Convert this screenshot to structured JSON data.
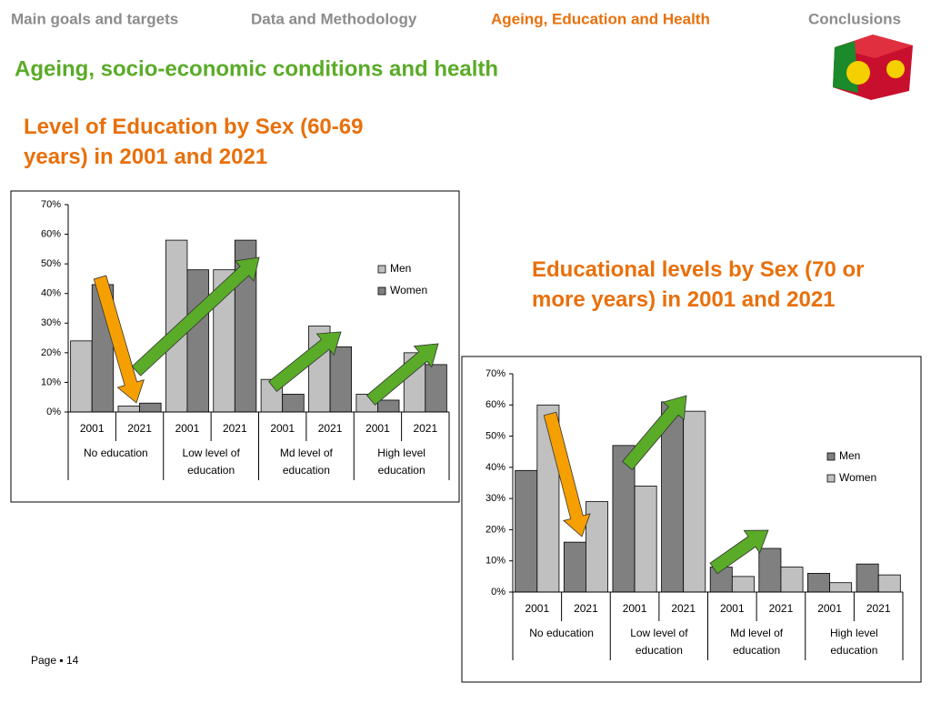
{
  "nav": [
    "Main goals and targets",
    "Data and Methodology",
    "Ageing, Education and Health",
    "Conclusions"
  ],
  "title": "Ageing, socio-economic conditions and health",
  "footer": "Page ▪ 14",
  "chart_data": [
    {
      "type": "bar",
      "heading": "Level of Education by Sex (60-69 years) in 2001 and 2021",
      "categories": [
        "2001",
        "2021",
        "2001",
        "2021",
        "2001",
        "2021",
        "2001",
        "2021"
      ],
      "groups": [
        "No education",
        "Low  level of education",
        "Md level of education",
        "High level education"
      ],
      "series": [
        {
          "name": "Men",
          "color": "#c0c0c0",
          "values": [
            24,
            2,
            58,
            48,
            11,
            29,
            6,
            20
          ]
        },
        {
          "name": "Women",
          "color": "#808080",
          "values": [
            43,
            3,
            48,
            58,
            6,
            22,
            4,
            16
          ]
        }
      ],
      "ylim": [
        0,
        70
      ],
      "yticks": [
        {
          "value": 0,
          "label": "0%"
        },
        {
          "value": 10,
          "label": "10%"
        },
        {
          "value": 20,
          "label": "20%"
        },
        {
          "value": 30,
          "label": "30%"
        },
        {
          "value": 40,
          "label": "40%"
        },
        {
          "value": 50,
          "label": "50%"
        },
        {
          "value": 60,
          "label": "60%"
        },
        {
          "value": 70,
          "label": "70%"
        }
      ],
      "legend": "right"
    },
    {
      "type": "bar",
      "heading": "Educational levels by Sex (70 or more years) in 2001 and 2021",
      "categories": [
        "2001",
        "2021",
        "2001",
        "2021",
        "2001",
        "2021",
        "2001",
        "2021"
      ],
      "groups": [
        "No education",
        "Low  level of education",
        "Md level of education",
        "High level education"
      ],
      "series": [
        {
          "name": "Men",
          "color": "#808080",
          "values": [
            39,
            16,
            47,
            61,
            8,
            14,
            6,
            9
          ]
        },
        {
          "name": "Women",
          "color": "#c0c0c0",
          "values": [
            60,
            29,
            34,
            58,
            5,
            8,
            3,
            5.5
          ]
        }
      ],
      "ylim": [
        0,
        70
      ],
      "yticks": [
        {
          "value": 0,
          "label": "0%"
        },
        {
          "value": 10,
          "label": "10%"
        },
        {
          "value": 20,
          "label": "20%"
        },
        {
          "value": 30,
          "label": "30%"
        },
        {
          "value": 40,
          "label": "40%"
        },
        {
          "value": 50,
          "label": "50%"
        },
        {
          "value": 60,
          "label": "60%"
        },
        {
          "value": 70,
          "label": "70%"
        }
      ],
      "legend": "right"
    }
  ]
}
